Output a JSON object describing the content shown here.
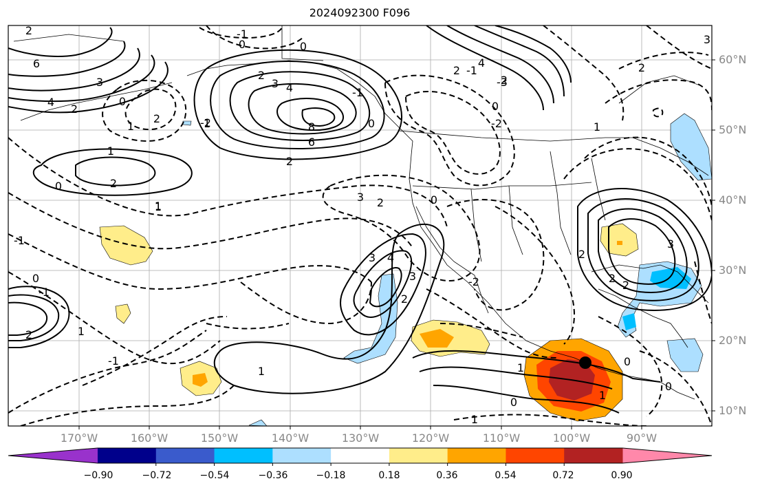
{
  "title": "2024092300 F096",
  "lat_labels": [
    "60°N",
    "50°N",
    "40°N",
    "30°N",
    "20°N",
    "10°N"
  ],
  "lon_labels": [
    "170°W",
    "160°W",
    "150°W",
    "140°W",
    "130°W",
    "120°W",
    "110°W",
    "100°W",
    "90°W"
  ],
  "colorbar": {
    "colors": [
      "#9932CC",
      "#00008B",
      "#3A5BCC",
      "#00BFFF",
      "#ADDFFF",
      "#FFFFFF",
      "#FFED8A",
      "#FFA500",
      "#FF4500",
      "#B22222",
      "#FF88AA"
    ],
    "tick_labels": [
      "−0.90",
      "−0.72",
      "−0.54",
      "−0.36",
      "−0.18",
      "0.18",
      "0.36",
      "0.54",
      "0.72",
      "0.90"
    ]
  },
  "contour_labels": [
    "2",
    "6",
    "4",
    "3",
    "2",
    "0",
    "1",
    "2",
    "1",
    "-1",
    "0",
    "-2",
    "1",
    "0",
    "3",
    "2",
    "4",
    "8",
    "6",
    "2",
    "1",
    "0",
    "2",
    "3",
    "-1",
    "0",
    "-1",
    "1",
    "2",
    "3",
    "4",
    "2",
    "3",
    "-1",
    "1",
    "2",
    "0",
    "-2",
    "0",
    "-2",
    "-1",
    "4",
    "2",
    "0",
    "-3",
    "2",
    "2",
    "1",
    "0",
    "2",
    "1",
    "2",
    "2",
    "1",
    "0",
    "1",
    "-1",
    "3",
    "0",
    "3",
    "1"
  ],
  "storm_marker": "hurricane-center"
}
